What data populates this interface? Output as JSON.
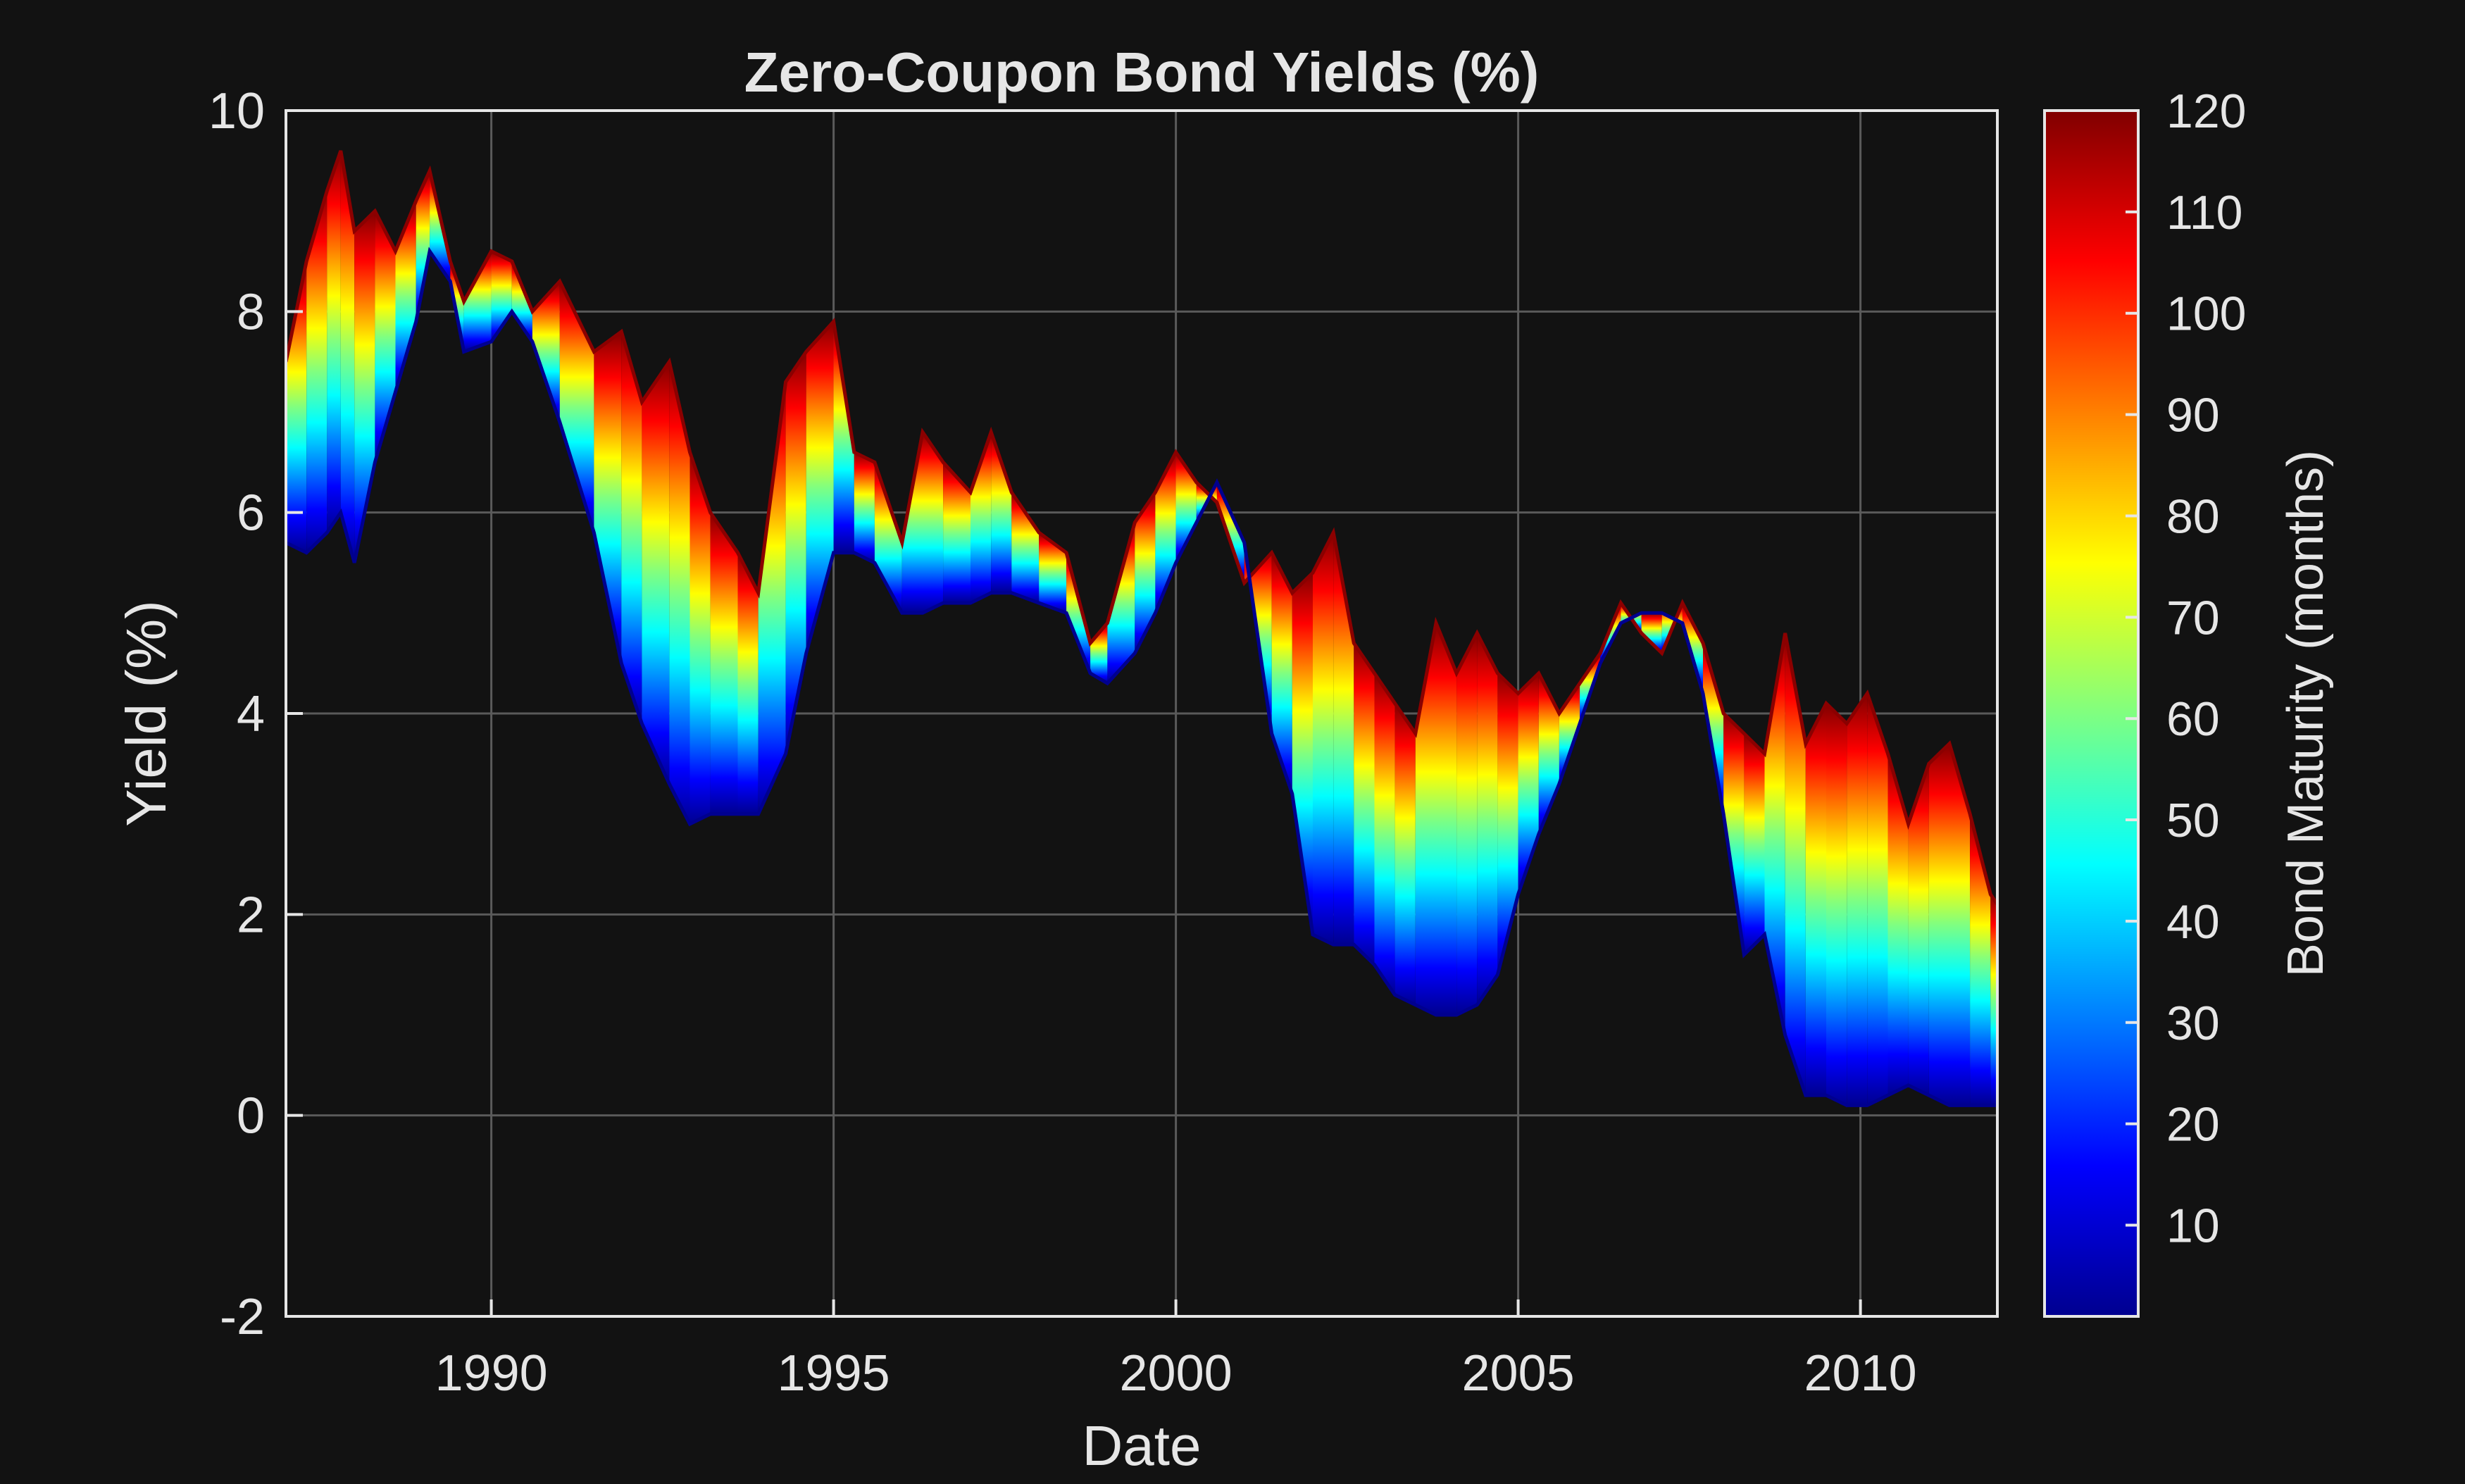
{
  "chart_data": {
    "type": "area",
    "title": "Zero-Coupon Bond Yields (%)",
    "xlabel": "Date",
    "ylabel": "Yield (%)",
    "xlim": [
      1987.0,
      2012.0
    ],
    "ylim": [
      -2,
      10
    ],
    "x_ticks": [
      "1990",
      "1995",
      "2000",
      "2005",
      "2010"
    ],
    "y_ticks": [
      "-2",
      "0",
      "2",
      "4",
      "6",
      "8",
      "10"
    ],
    "grid": true,
    "colormap": "jet",
    "colorbar": {
      "label": "Bond Maturity (months)",
      "range": [
        1,
        120
      ],
      "ticks": [
        "10",
        "20",
        "30",
        "40",
        "50",
        "60",
        "70",
        "80",
        "90",
        "100",
        "110",
        "120"
      ]
    },
    "series": [
      {
        "maturity_months": 120,
        "x": [
          1987.0,
          1987.3,
          1987.6,
          1987.8,
          1988.0,
          1988.3,
          1988.6,
          1988.9,
          1989.1,
          1989.4,
          1989.6,
          1990.0,
          1990.3,
          1990.6,
          1991.0,
          1991.5,
          1991.9,
          1992.2,
          1992.6,
          1992.9,
          1993.2,
          1993.6,
          1993.9,
          1994.3,
          1994.6,
          1995.0,
          1995.3,
          1995.6,
          1996.0,
          1996.3,
          1996.6,
          1997.0,
          1997.3,
          1997.6,
          1998.0,
          1998.4,
          1998.75,
          1999.0,
          1999.4,
          1999.7,
          2000.0,
          2000.3,
          2000.6,
          2001.0,
          2001.4,
          2001.7,
          2002.0,
          2002.3,
          2002.6,
          2002.9,
          2003.2,
          2003.5,
          2003.8,
          2004.1,
          2004.4,
          2004.7,
          2005.0,
          2005.3,
          2005.6,
          2005.9,
          2006.2,
          2006.5,
          2006.8,
          2007.1,
          2007.4,
          2007.7,
          2008.0,
          2008.3,
          2008.6,
          2008.9,
          2009.2,
          2009.5,
          2009.8,
          2010.1,
          2010.4,
          2010.7,
          2011.0,
          2011.3,
          2011.6,
          2011.9,
          2012.0
        ],
        "y": [
          7.5,
          8.5,
          9.2,
          9.6,
          8.8,
          9.0,
          8.6,
          9.1,
          9.4,
          8.5,
          8.1,
          8.6,
          8.5,
          8.0,
          8.3,
          7.6,
          7.8,
          7.1,
          7.5,
          6.6,
          6.0,
          5.6,
          5.2,
          7.3,
          7.6,
          7.9,
          6.6,
          6.5,
          5.7,
          6.8,
          6.5,
          6.2,
          6.8,
          6.2,
          5.8,
          5.6,
          4.7,
          4.9,
          5.9,
          6.2,
          6.6,
          6.3,
          6.1,
          5.3,
          5.6,
          5.2,
          5.4,
          5.8,
          4.7,
          4.4,
          4.1,
          3.8,
          4.9,
          4.4,
          4.8,
          4.4,
          4.2,
          4.4,
          4.0,
          4.3,
          4.6,
          5.1,
          4.8,
          4.6,
          5.1,
          4.7,
          4.0,
          3.8,
          3.6,
          4.8,
          3.7,
          4.1,
          3.9,
          4.2,
          3.6,
          2.9,
          3.5,
          3.7,
          3.0,
          2.2,
          2.1
        ]
      },
      {
        "maturity_months": 1,
        "x": [
          1987.0,
          1987.3,
          1987.6,
          1987.8,
          1988.0,
          1988.3,
          1988.6,
          1988.9,
          1989.1,
          1989.4,
          1989.6,
          1990.0,
          1990.3,
          1990.6,
          1991.0,
          1991.5,
          1991.9,
          1992.2,
          1992.6,
          1992.9,
          1993.2,
          1993.6,
          1993.9,
          1994.3,
          1994.6,
          1995.0,
          1995.3,
          1995.6,
          1996.0,
          1996.3,
          1996.6,
          1997.0,
          1997.3,
          1997.6,
          1998.0,
          1998.4,
          1998.75,
          1999.0,
          1999.4,
          1999.7,
          2000.0,
          2000.3,
          2000.6,
          2001.0,
          2001.4,
          2001.7,
          2002.0,
          2002.3,
          2002.6,
          2002.9,
          2003.2,
          2003.5,
          2003.8,
          2004.1,
          2004.4,
          2004.7,
          2005.0,
          2005.3,
          2005.6,
          2005.9,
          2006.2,
          2006.5,
          2006.8,
          2007.1,
          2007.4,
          2007.7,
          2008.0,
          2008.3,
          2008.6,
          2008.9,
          2009.2,
          2009.5,
          2009.8,
          2010.1,
          2010.4,
          2010.7,
          2011.0,
          2011.3,
          2011.6,
          2011.9,
          2012.0
        ],
        "y": [
          5.7,
          5.6,
          5.8,
          6.0,
          5.5,
          6.5,
          7.2,
          7.9,
          8.6,
          8.3,
          7.6,
          7.7,
          8.0,
          7.7,
          6.9,
          5.8,
          4.5,
          3.9,
          3.3,
          2.9,
          3.0,
          3.0,
          3.0,
          3.6,
          4.6,
          5.6,
          5.6,
          5.5,
          5.0,
          5.0,
          5.1,
          5.1,
          5.2,
          5.2,
          5.1,
          5.0,
          4.4,
          4.3,
          4.6,
          5.0,
          5.5,
          5.9,
          6.3,
          5.7,
          3.8,
          3.2,
          1.8,
          1.7,
          1.7,
          1.5,
          1.2,
          1.1,
          1.0,
          1.0,
          1.1,
          1.4,
          2.2,
          2.8,
          3.3,
          3.9,
          4.5,
          4.9,
          5.0,
          5.0,
          4.9,
          4.2,
          3.0,
          1.6,
          1.8,
          0.8,
          0.2,
          0.2,
          0.1,
          0.1,
          0.2,
          0.3,
          0.2,
          0.1,
          0.1,
          0.1,
          0.1
        ]
      }
    ]
  }
}
